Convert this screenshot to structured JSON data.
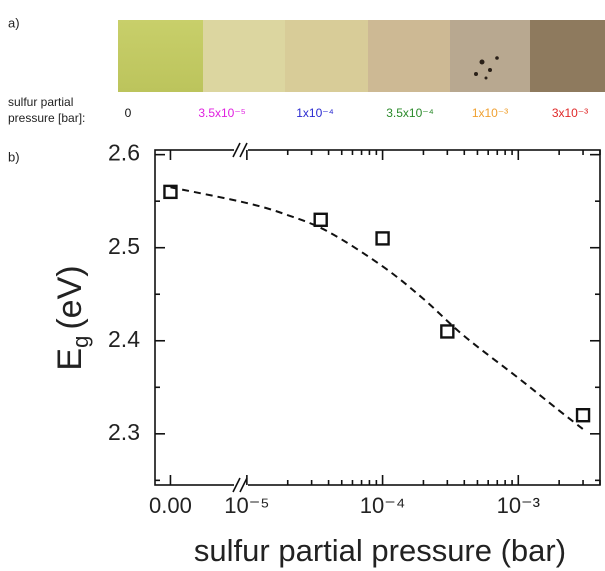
{
  "chart_data": {
    "type": "scatter",
    "panel_a": "a)",
    "panel_b": "b)",
    "strip_label_lines": [
      "sulfur partial",
      "pressure [bar]:"
    ],
    "strip_labels": [
      {
        "label": "0",
        "color": "#111111"
      },
      {
        "label": "3.5x10⁻⁵",
        "color": "#e020e0"
      },
      {
        "label": "1x10⁻⁴",
        "color": "#2a2ad0"
      },
      {
        "label": "3.5x10⁻⁴",
        "color": "#2a8a2a"
      },
      {
        "label": "1x10⁻³",
        "color": "#f0a030"
      },
      {
        "label": "3x10⁻³",
        "color": "#e02828"
      }
    ],
    "x_label": "sulfur partial pressure (bar)",
    "y_label_symbol": "E",
    "y_label_subscript": "g",
    "y_label_unit": "(eV)",
    "x": [
      0,
      3.5e-05,
      0.0001,
      0.0003,
      0.003
    ],
    "values": [
      2.56,
      2.53,
      2.51,
      2.41,
      2.32
    ],
    "marker_color": "#111111",
    "fit": {
      "x": [
        0,
        1e-05,
        2e-05,
        4e-05,
        0.0001,
        0.0002,
        0.0004,
        0.001,
        0.002,
        0.003
      ],
      "values": [
        2.565,
        2.548,
        2.535,
        2.517,
        2.48,
        2.445,
        2.405,
        2.36,
        2.325,
        2.305
      ],
      "color": "#111111",
      "dashed": true
    },
    "x_break_lim": [
      -1e-05,
      4.5e-05
    ],
    "x_break_ticks": [
      {
        "value": 0,
        "label": "0.00"
      }
    ],
    "xscale": "log",
    "xlim": [
      8.9e-06,
      0.004
    ],
    "xticks": [
      {
        "value": 1e-05,
        "label": "10⁻⁵"
      },
      {
        "value": 0.0001,
        "label": "10⁻⁴"
      },
      {
        "value": 0.001,
        "label": "10⁻³"
      }
    ],
    "xminorticks": [
      2e-05,
      3e-05,
      4e-05,
      5e-05,
      6e-05,
      7e-05,
      8e-05,
      9e-05,
      0.0002,
      0.0003,
      0.0004,
      0.0005,
      0.0006,
      0.0007,
      0.0008,
      0.0009,
      0.002,
      0.003,
      0.004
    ],
    "ylim": [
      2.245,
      2.605
    ],
    "yticks": [
      2.3,
      2.4,
      2.5,
      2.6
    ],
    "yminorticks": [
      2.25,
      2.35,
      2.45,
      2.55
    ]
  }
}
